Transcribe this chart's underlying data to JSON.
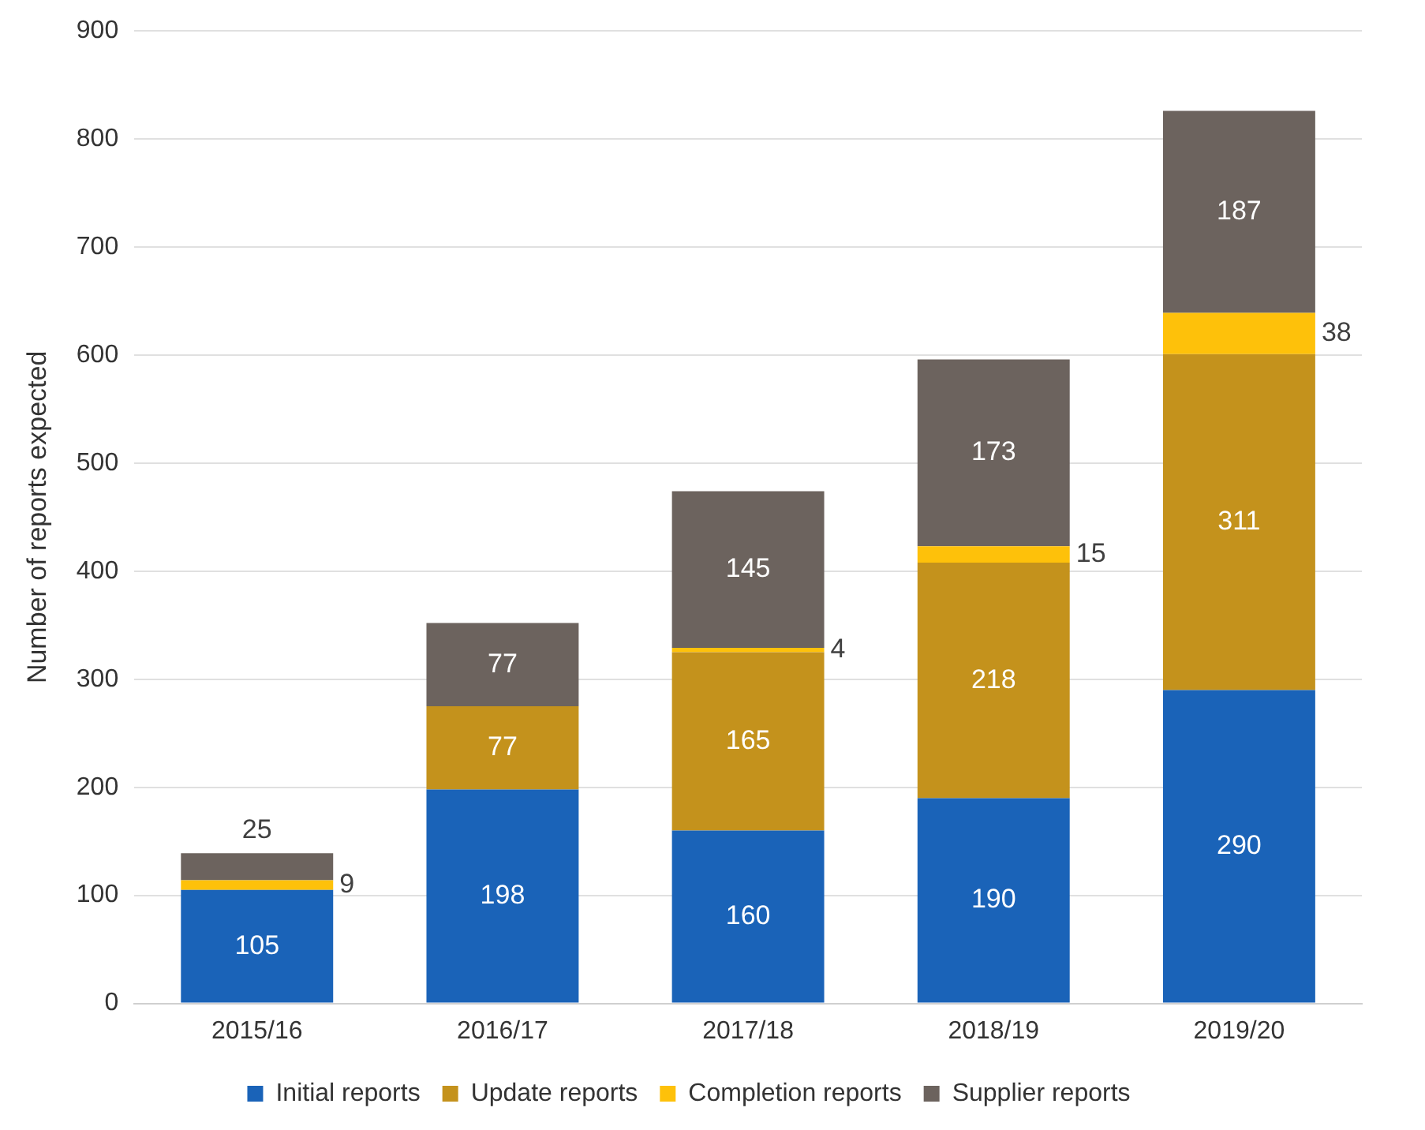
{
  "chart_data": {
    "type": "bar",
    "stacked": true,
    "ylabel": "Number of reports expected",
    "categories": [
      "2015/16",
      "2016/17",
      "2017/18",
      "2018/19",
      "2019/20"
    ],
    "series": [
      {
        "name": "Initial reports",
        "color": "#1a63b8",
        "values": [
          105,
          198,
          160,
          190,
          290
        ]
      },
      {
        "name": "Update reports",
        "color": "#c4921c",
        "values": [
          null,
          77,
          165,
          218,
          311
        ]
      },
      {
        "name": "Completion reports",
        "color": "#fec10a",
        "values": [
          9,
          null,
          4,
          15,
          38
        ]
      },
      {
        "name": "Supplier reports",
        "color": "#6c635e",
        "values": [
          25,
          77,
          145,
          173,
          187
        ]
      }
    ],
    "ylim": [
      0,
      900
    ],
    "yticks": [
      0,
      100,
      200,
      300,
      400,
      500,
      600,
      700,
      800,
      900
    ],
    "grid": "y",
    "legend": "bottom",
    "data_labels": true
  }
}
